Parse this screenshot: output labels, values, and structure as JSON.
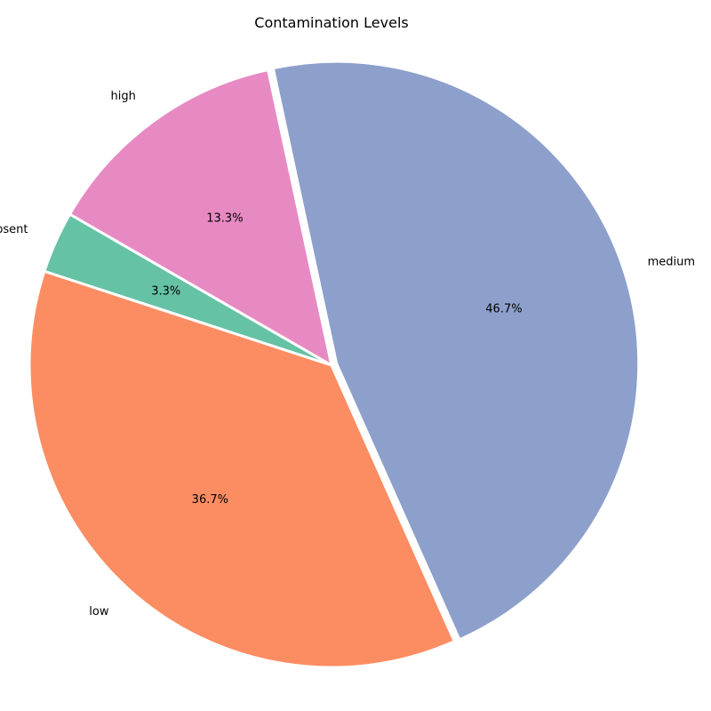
{
  "chart_data": {
    "type": "pie",
    "title": "Contamination Levels",
    "slices": [
      {
        "label": "absent",
        "value": 3.3,
        "pct_label": "3.3%",
        "color": "#66c2a5"
      },
      {
        "label": "low",
        "value": 36.7,
        "pct_label": "36.7%",
        "color": "#fc8d62"
      },
      {
        "label": "medium",
        "value": 46.7,
        "pct_label": "46.7%",
        "color": "#8da0cb"
      },
      {
        "label": "high",
        "value": 13.3,
        "pct_label": "13.3%",
        "color": "#e78ac3"
      }
    ],
    "legend": "none"
  }
}
